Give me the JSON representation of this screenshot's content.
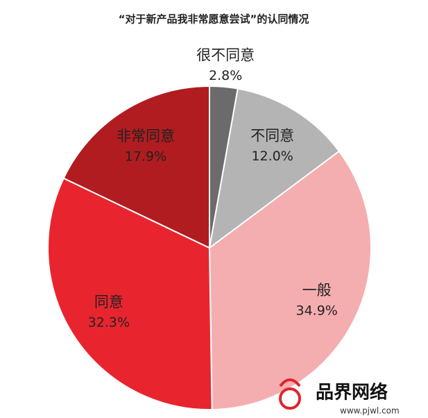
{
  "chart_data": {
    "type": "pie",
    "title": "“对于新产品我非常愿意尝试”的认同情况",
    "categories": [
      "很不同意",
      "不同意",
      "一般",
      "同意",
      "非常同意"
    ],
    "values": [
      2.8,
      12.0,
      34.9,
      32.3,
      17.9
    ],
    "value_labels": [
      "2.8%",
      "12.0%",
      "34.9%",
      "32.3%",
      "17.9%"
    ],
    "colors": [
      "#6b6b6b",
      "#b4b4b4",
      "#f4aeb0",
      "#e8252f",
      "#b01c20"
    ]
  },
  "watermark": {
    "name": "品界网络",
    "url": "www.pjwl.com"
  }
}
